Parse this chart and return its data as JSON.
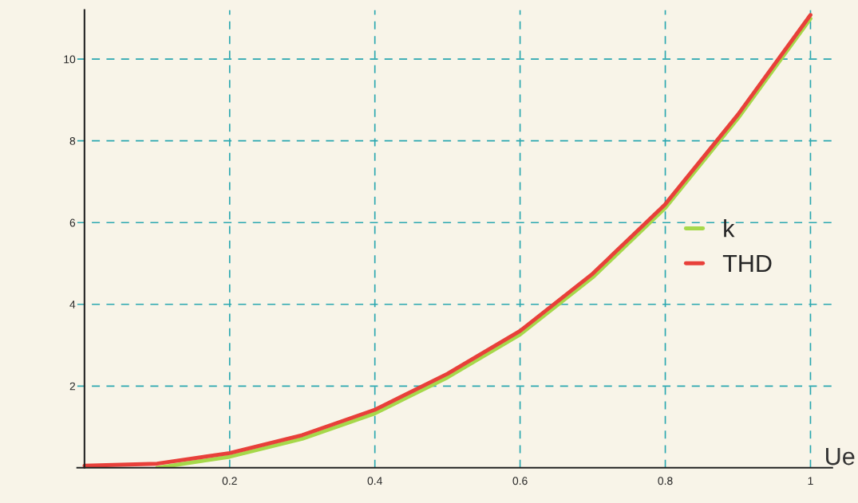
{
  "chart_data": {
    "type": "line",
    "xlabel": "Ue",
    "x": [
      0,
      0.1,
      0.2,
      0.3,
      0.4,
      0.5,
      0.6,
      0.7,
      0.8,
      0.9,
      1.0
    ],
    "series": [
      {
        "name": "k",
        "color": "#a6d84a",
        "values": [
          null,
          0.0,
          0.27,
          0.71,
          1.33,
          2.21,
          3.26,
          4.66,
          6.36,
          8.55,
          10.99
        ]
      },
      {
        "name": "THD",
        "color": "#e8403a",
        "values": [
          0.05,
          0.1,
          0.36,
          0.8,
          1.42,
          2.3,
          3.35,
          4.75,
          6.45,
          8.64,
          11.08
        ]
      }
    ],
    "xlim": [
      -0.01,
      1.03
    ],
    "ylim": [
      0,
      11.2
    ],
    "xticks": [
      0.2,
      0.4,
      0.6,
      0.8,
      1
    ],
    "yticks": [
      2,
      4,
      6,
      8,
      10
    ],
    "grid": true,
    "legend": "right",
    "marker": "none",
    "line_style": "solid"
  }
}
